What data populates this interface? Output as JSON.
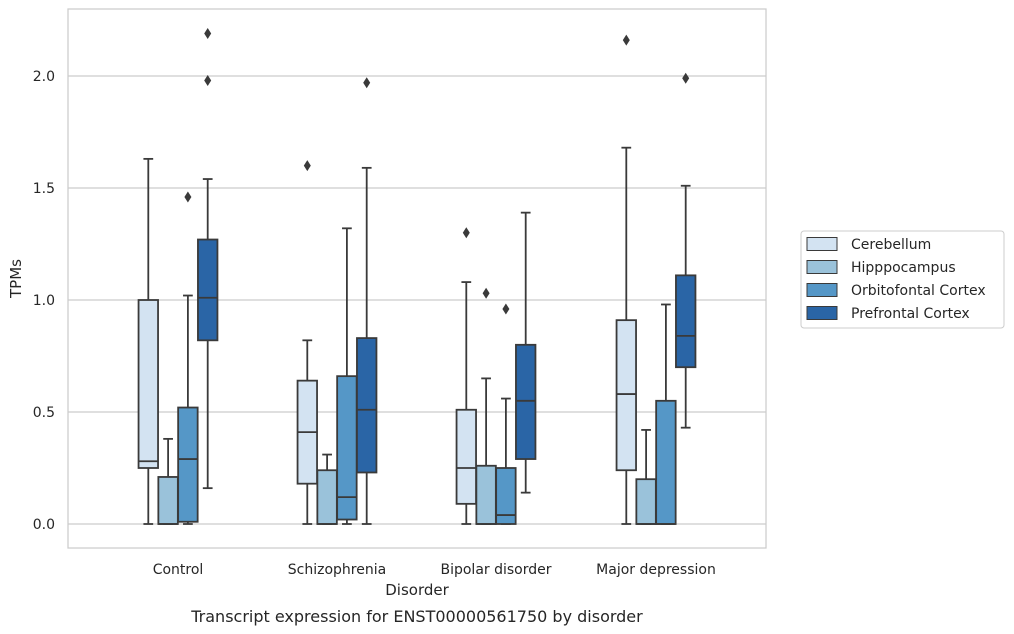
{
  "chart_data": {
    "type": "box",
    "caption": "Transcript expression for ENST00000561750 by disorder",
    "xlabel": "Disorder",
    "ylabel": "TPMs",
    "ylim": [
      -0.1,
      2.3
    ],
    "yticks": [
      0.0,
      0.5,
      1.0,
      1.5,
      2.0
    ],
    "ytick_labels": [
      "0.0",
      "0.5",
      "1.0",
      "1.5",
      "2.0"
    ],
    "grid": true,
    "legend_position": "right",
    "categories": [
      "Control",
      "Schizophrenia",
      "Bipolar disorder",
      "Major depression"
    ],
    "series": [
      {
        "name": "Cerebellum",
        "color": "#d3e3f2",
        "boxes": [
          {
            "whisker_low": 0.0,
            "q1": 0.25,
            "median": 0.28,
            "q3": 1.0,
            "whisker_high": 1.63,
            "outliers": []
          },
          {
            "whisker_low": 0.0,
            "q1": 0.18,
            "median": 0.41,
            "q3": 0.64,
            "whisker_high": 0.82,
            "outliers": [
              1.6
            ]
          },
          {
            "whisker_low": 0.0,
            "q1": 0.09,
            "median": 0.25,
            "q3": 0.51,
            "whisker_high": 1.08,
            "outliers": [
              1.3
            ]
          },
          {
            "whisker_low": 0.0,
            "q1": 0.24,
            "median": 0.58,
            "q3": 0.91,
            "whisker_high": 1.68,
            "outliers": [
              2.16
            ]
          }
        ]
      },
      {
        "name": "Hipppocampus",
        "color": "#9ac2da",
        "boxes": [
          {
            "whisker_low": 0.0,
            "q1": 0.0,
            "median": 0.0,
            "q3": 0.21,
            "whisker_high": 0.38,
            "outliers": []
          },
          {
            "whisker_low": 0.0,
            "q1": 0.0,
            "median": 0.0,
            "q3": 0.24,
            "whisker_high": 0.31,
            "outliers": []
          },
          {
            "whisker_low": 0.0,
            "q1": 0.0,
            "median": 0.0,
            "q3": 0.26,
            "whisker_high": 0.65,
            "outliers": [
              1.03
            ]
          },
          {
            "whisker_low": 0.0,
            "q1": 0.0,
            "median": 0.0,
            "q3": 0.2,
            "whisker_high": 0.42,
            "outliers": []
          }
        ]
      },
      {
        "name": "Orbitofontal Cortex",
        "color": "#5597c7",
        "boxes": [
          {
            "whisker_low": 0.0,
            "q1": 0.01,
            "median": 0.29,
            "q3": 0.52,
            "whisker_high": 1.02,
            "outliers": [
              1.46
            ]
          },
          {
            "whisker_low": 0.0,
            "q1": 0.02,
            "median": 0.12,
            "q3": 0.66,
            "whisker_high": 1.32,
            "outliers": []
          },
          {
            "whisker_low": 0.0,
            "q1": 0.0,
            "median": 0.04,
            "q3": 0.25,
            "whisker_high": 0.56,
            "outliers": [
              0.96
            ]
          },
          {
            "whisker_low": 0.0,
            "q1": 0.0,
            "median": 0.0,
            "q3": 0.55,
            "whisker_high": 0.98,
            "outliers": []
          }
        ]
      },
      {
        "name": "Prefrontal Cortex",
        "color": "#2a65a6",
        "boxes": [
          {
            "whisker_low": 0.16,
            "q1": 0.82,
            "median": 1.01,
            "q3": 1.27,
            "whisker_high": 1.54,
            "outliers": [
              1.98,
              2.19
            ]
          },
          {
            "whisker_low": 0.0,
            "q1": 0.23,
            "median": 0.51,
            "q3": 0.83,
            "whisker_high": 1.59,
            "outliers": [
              1.97
            ]
          },
          {
            "whisker_low": 0.14,
            "q1": 0.29,
            "median": 0.55,
            "q3": 0.8,
            "whisker_high": 1.39,
            "outliers": []
          },
          {
            "whisker_low": 0.43,
            "q1": 0.7,
            "median": 0.84,
            "q3": 1.11,
            "whisker_high": 1.51,
            "outliers": [
              1.99
            ]
          }
        ]
      }
    ]
  }
}
